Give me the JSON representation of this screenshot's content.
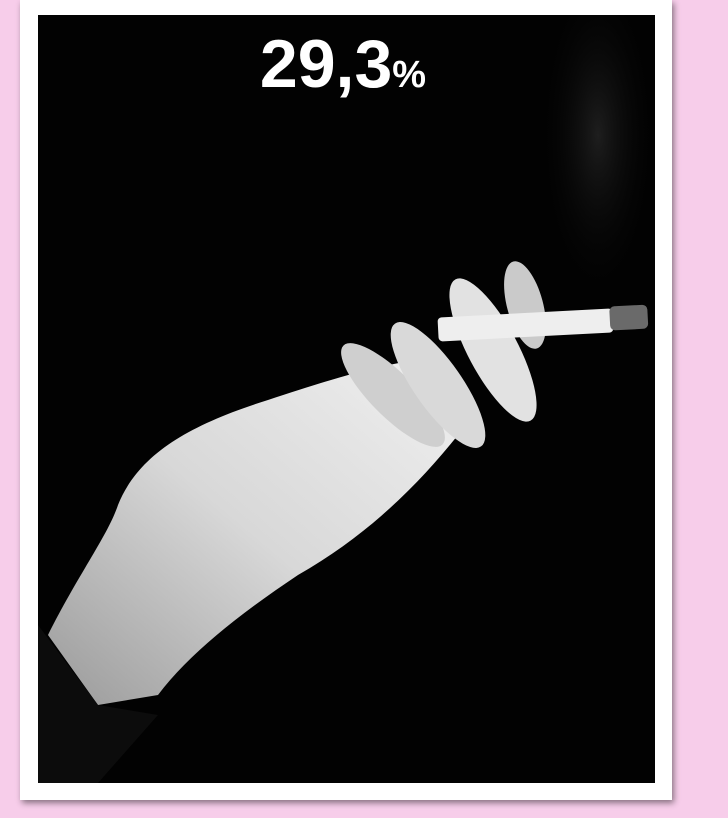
{
  "stat": {
    "value": "29,3",
    "unit": "%"
  }
}
